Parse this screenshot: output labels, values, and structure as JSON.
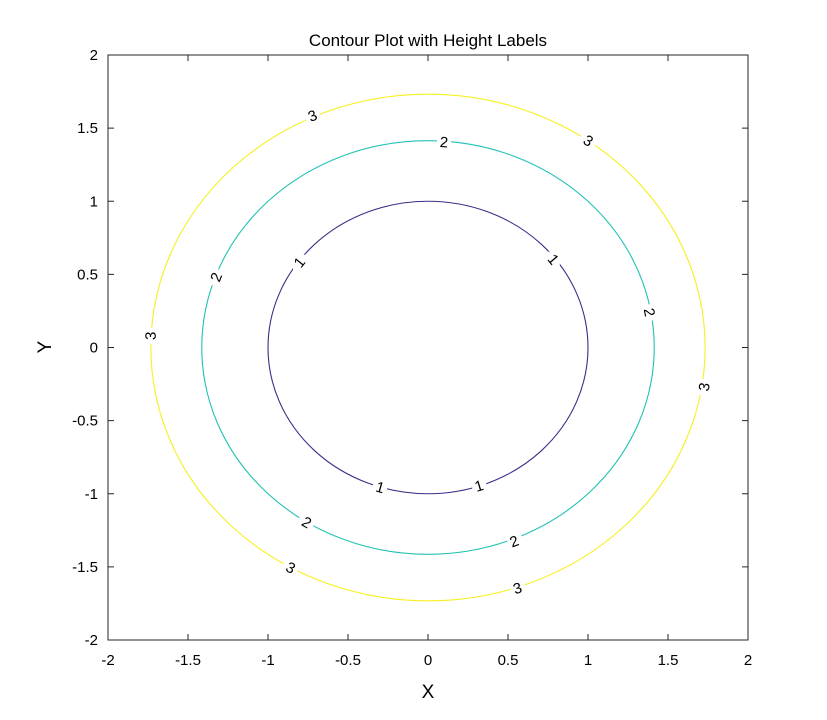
{
  "chart_data": {
    "type": "contour",
    "title": "Contour Plot with Height Labels",
    "xlabel": "X",
    "ylabel": "Y",
    "xlim": [
      -2,
      2
    ],
    "ylim": [
      -2,
      2
    ],
    "xticks": [
      "-2",
      "-1.5",
      "-1",
      "-0.5",
      "0",
      "0.5",
      "1",
      "1.5",
      "2"
    ],
    "yticks": [
      "-2",
      "-1.5",
      "-1",
      "-0.5",
      "0",
      "0.5",
      "1",
      "1.5",
      "2"
    ],
    "grid": false,
    "levels": [
      {
        "level": 1,
        "label": "1",
        "radius": 1.0,
        "color": "#3e2c87",
        "label_positions": [
          [
            -0.8,
            0.58
          ],
          [
            0.78,
            0.6
          ],
          [
            -0.3,
            -0.96
          ],
          [
            0.32,
            -0.95
          ]
        ]
      },
      {
        "level": 2,
        "label": "2",
        "radius": 1.414,
        "color": "#21c1b4",
        "label_positions": [
          [
            0.1,
            1.4
          ],
          [
            -1.32,
            0.48
          ],
          [
            1.38,
            0.24
          ],
          [
            -0.76,
            -1.2
          ],
          [
            0.54,
            -1.33
          ]
        ]
      },
      {
        "level": 3,
        "label": "3",
        "radius": 1.732,
        "color": "#f5f020",
        "label_positions": [
          [
            -0.72,
            1.58
          ],
          [
            1.0,
            1.41
          ],
          [
            -1.73,
            0.08
          ],
          [
            1.73,
            -0.27
          ],
          [
            -0.86,
            -1.51
          ],
          [
            0.56,
            -1.65
          ]
        ]
      }
    ]
  }
}
